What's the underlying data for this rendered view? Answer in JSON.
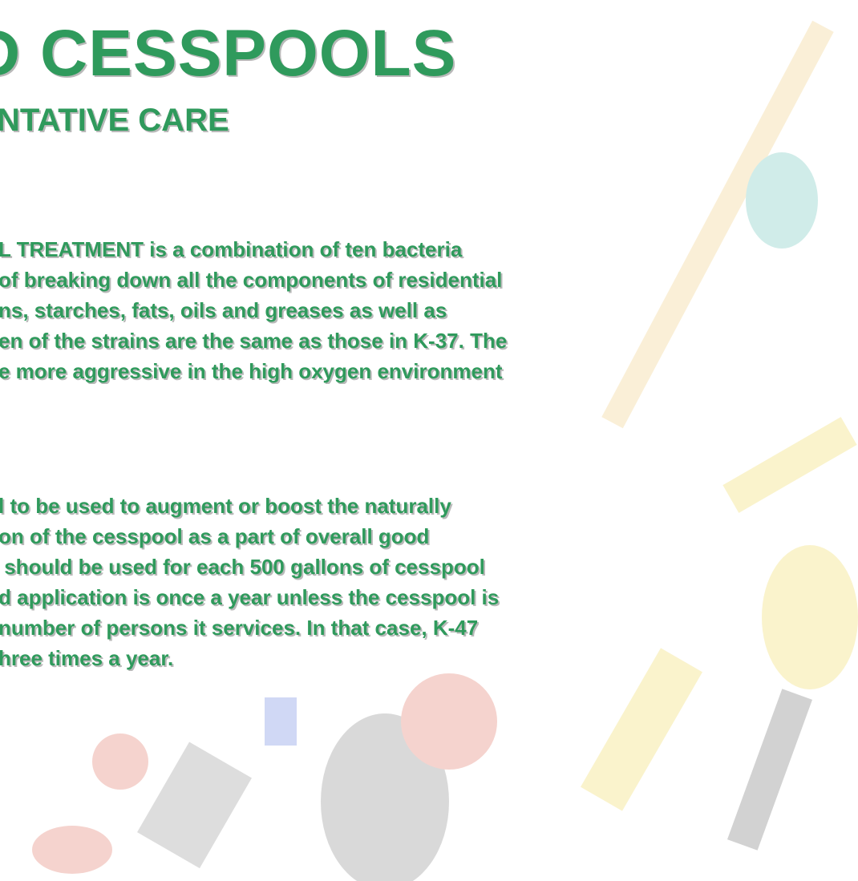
{
  "header": {
    "title": "D CESSPOOLS",
    "subtitle": "NTATIVE CARE"
  },
  "paragraphs": [
    [
      "L TREATMENT is a combination of ten bacteria",
      "of breaking down all the components of residential",
      "ns, starches, fats, oils and greases as well as",
      "en of the strains are the same as those in K-37. The",
      "e more aggressive in the high oxygen environment"
    ],
    [
      "l to be used to augment or boost the naturally",
      "on of the cesspool as a part of overall good",
      " should be used for each 500 gallons of cesspool",
      "d application is once a year unless the cesspool is",
      "number of persons it services. In that case, K-47",
      "hree times a year."
    ]
  ]
}
